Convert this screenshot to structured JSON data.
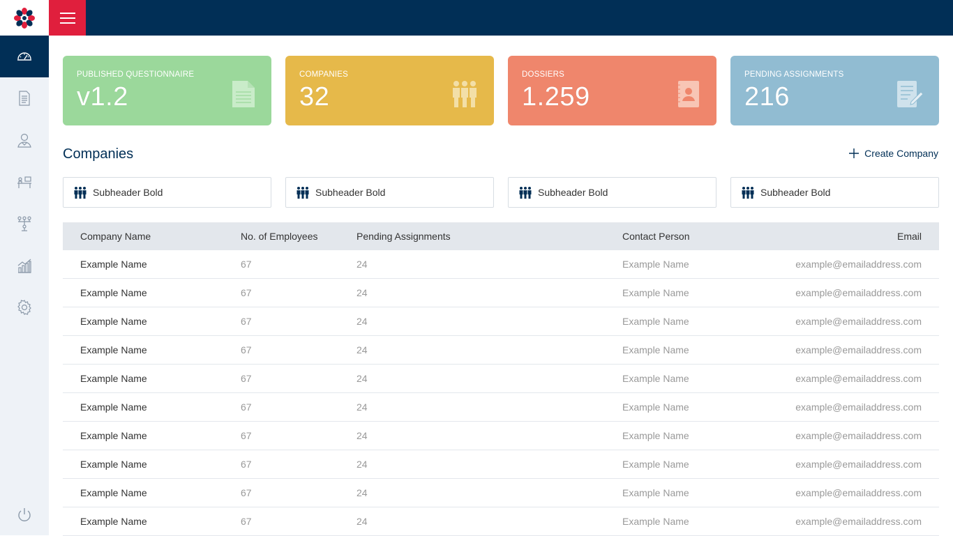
{
  "stats": [
    {
      "label": "PUBLISHED QUESTIONNAIRE",
      "value": "v1.2",
      "color": "#9bd89b",
      "icon": "document-icon"
    },
    {
      "label": "COMPANIES",
      "value": "32",
      "color": "#e6b94a",
      "icon": "people-group-icon"
    },
    {
      "label": "DOSSIERS",
      "value": "1.259",
      "color": "#ef866c",
      "icon": "dossier-icon"
    },
    {
      "label": "PENDING ASSIGNMENTS",
      "value": "216",
      "color": "#91bcd2",
      "icon": "assignment-icon"
    }
  ],
  "section": {
    "title": "Companies",
    "create_label": "Create Company"
  },
  "subheaders": [
    "Subheader Bold",
    "Subheader Bold",
    "Subheader Bold",
    "Subheader Bold"
  ],
  "table": {
    "columns": [
      "Company Name",
      "No. of Employees",
      "Pending Assignments",
      "Contact Person",
      "Email"
    ],
    "rows": [
      [
        "Example Name",
        "67",
        "24",
        "Example Name",
        "example@emailaddress.com"
      ],
      [
        "Example Name",
        "67",
        "24",
        "Example Name",
        "example@emailaddress.com"
      ],
      [
        "Example Name",
        "67",
        "24",
        "Example Name",
        "example@emailaddress.com"
      ],
      [
        "Example Name",
        "67",
        "24",
        "Example Name",
        "example@emailaddress.com"
      ],
      [
        "Example Name",
        "67",
        "24",
        "Example Name",
        "example@emailaddress.com"
      ],
      [
        "Example Name",
        "67",
        "24",
        "Example Name",
        "example@emailaddress.com"
      ],
      [
        "Example Name",
        "67",
        "24",
        "Example Name",
        "example@emailaddress.com"
      ],
      [
        "Example Name",
        "67",
        "24",
        "Example Name",
        "example@emailaddress.com"
      ],
      [
        "Example Name",
        "67",
        "24",
        "Example Name",
        "example@emailaddress.com"
      ],
      [
        "Example Name",
        "67",
        "24",
        "Example Name",
        "example@emailaddress.com"
      ]
    ]
  },
  "sidebar": {
    "items": [
      "dashboard-icon",
      "document-icon",
      "user-icon",
      "desk-icon",
      "hierarchy-icon",
      "chart-icon",
      "gear-icon"
    ],
    "logout": "power-icon"
  },
  "colors": {
    "navy": "#012f56",
    "red": "#e01f3d",
    "sidebar": "#eef2f7"
  }
}
